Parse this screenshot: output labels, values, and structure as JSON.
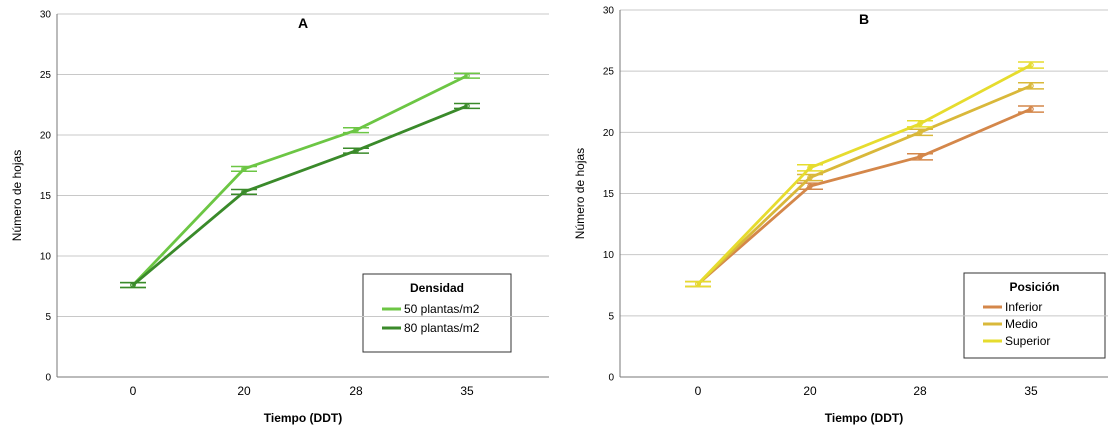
{
  "chart_data": [
    {
      "type": "line",
      "title": "A",
      "xlabel": "Tiempo (DDT)",
      "ylabel": "Número de hojas",
      "categories": [
        "0",
        "20",
        "28",
        "35"
      ],
      "ylim": [
        0,
        30
      ],
      "yticks": [
        "0",
        "5",
        "10",
        "15",
        "20",
        "25",
        "30"
      ],
      "grid": "horizontal",
      "error_bars": true,
      "legend": {
        "title": "Densidad",
        "position": "bottom-right",
        "items": [
          "50 plantas/m2",
          "80 plantas/m2"
        ]
      },
      "series": [
        {
          "name": "50 plantas/m2",
          "color": "#6cc644",
          "values": [
            7.6,
            17.2,
            20.4,
            24.9
          ],
          "err": [
            0.2,
            0.2,
            0.2,
            0.2
          ]
        },
        {
          "name": "80 plantas/m2",
          "color": "#3a8a2a",
          "values": [
            7.6,
            15.3,
            18.7,
            22.4
          ],
          "err": [
            0.2,
            0.2,
            0.2,
            0.2
          ]
        }
      ]
    },
    {
      "type": "line",
      "title": "B",
      "xlabel": "Tiempo (DDT)",
      "ylabel": "Número de hojas",
      "categories": [
        "0",
        "20",
        "28",
        "35"
      ],
      "ylim": [
        0,
        30
      ],
      "yticks": [
        "0",
        "5",
        "10",
        "15",
        "20",
        "25",
        "30"
      ],
      "grid": "horizontal",
      "error_bars": true,
      "legend": {
        "title": "Posición",
        "position": "bottom-right",
        "items": [
          "Inferior",
          "Medio",
          "Superior"
        ]
      },
      "series": [
        {
          "name": "Inferior",
          "color": "#d4874a",
          "values": [
            7.6,
            15.6,
            18.0,
            21.9
          ],
          "err": [
            0.2,
            0.25,
            0.25,
            0.25
          ]
        },
        {
          "name": "Medio",
          "color": "#d9b83a",
          "values": [
            7.6,
            16.3,
            20.0,
            23.8
          ],
          "err": [
            0.2,
            0.25,
            0.25,
            0.25
          ]
        },
        {
          "name": "Superior",
          "color": "#e6dc2e",
          "values": [
            7.6,
            17.1,
            20.7,
            25.5
          ],
          "err": [
            0.2,
            0.25,
            0.25,
            0.25
          ]
        }
      ]
    }
  ]
}
